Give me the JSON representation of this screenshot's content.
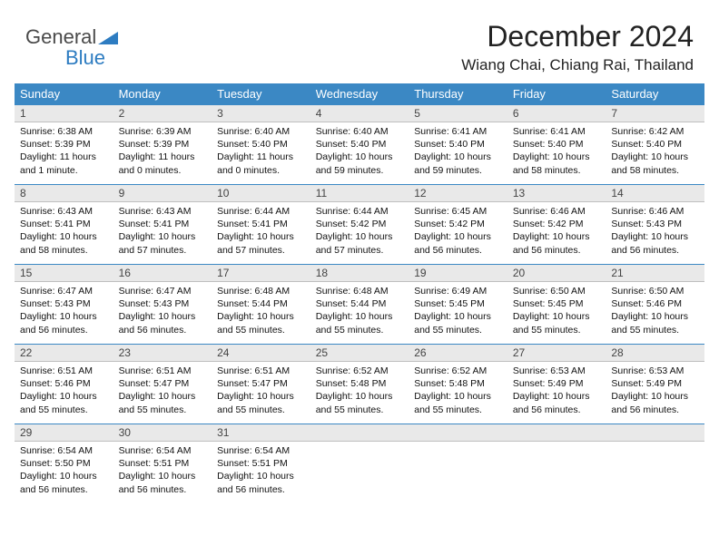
{
  "logo": {
    "line1": "General",
    "line2": "Blue",
    "triangle_color": "#2d7cc1"
  },
  "title": "December 2024",
  "subtitle": "Wiang Chai, Chiang Rai, Thailand",
  "colors": {
    "header_bg": "#3b88c4",
    "header_text": "#ffffff",
    "daybar_bg": "#e9e9e9",
    "daybar_border_top": "#3b88c4",
    "daybar_border_bottom": "#bfbfbf",
    "background": "#ffffff"
  },
  "weekdays": [
    "Sunday",
    "Monday",
    "Tuesday",
    "Wednesday",
    "Thursday",
    "Friday",
    "Saturday"
  ],
  "days": [
    {
      "n": "1",
      "sunrise": "6:38 AM",
      "sunset": "5:39 PM",
      "daylight": "11 hours and 1 minute."
    },
    {
      "n": "2",
      "sunrise": "6:39 AM",
      "sunset": "5:39 PM",
      "daylight": "11 hours and 0 minutes."
    },
    {
      "n": "3",
      "sunrise": "6:40 AM",
      "sunset": "5:40 PM",
      "daylight": "11 hours and 0 minutes."
    },
    {
      "n": "4",
      "sunrise": "6:40 AM",
      "sunset": "5:40 PM",
      "daylight": "10 hours and 59 minutes."
    },
    {
      "n": "5",
      "sunrise": "6:41 AM",
      "sunset": "5:40 PM",
      "daylight": "10 hours and 59 minutes."
    },
    {
      "n": "6",
      "sunrise": "6:41 AM",
      "sunset": "5:40 PM",
      "daylight": "10 hours and 58 minutes."
    },
    {
      "n": "7",
      "sunrise": "6:42 AM",
      "sunset": "5:40 PM",
      "daylight": "10 hours and 58 minutes."
    },
    {
      "n": "8",
      "sunrise": "6:43 AM",
      "sunset": "5:41 PM",
      "daylight": "10 hours and 58 minutes."
    },
    {
      "n": "9",
      "sunrise": "6:43 AM",
      "sunset": "5:41 PM",
      "daylight": "10 hours and 57 minutes."
    },
    {
      "n": "10",
      "sunrise": "6:44 AM",
      "sunset": "5:41 PM",
      "daylight": "10 hours and 57 minutes."
    },
    {
      "n": "11",
      "sunrise": "6:44 AM",
      "sunset": "5:42 PM",
      "daylight": "10 hours and 57 minutes."
    },
    {
      "n": "12",
      "sunrise": "6:45 AM",
      "sunset": "5:42 PM",
      "daylight": "10 hours and 56 minutes."
    },
    {
      "n": "13",
      "sunrise": "6:46 AM",
      "sunset": "5:42 PM",
      "daylight": "10 hours and 56 minutes."
    },
    {
      "n": "14",
      "sunrise": "6:46 AM",
      "sunset": "5:43 PM",
      "daylight": "10 hours and 56 minutes."
    },
    {
      "n": "15",
      "sunrise": "6:47 AM",
      "sunset": "5:43 PM",
      "daylight": "10 hours and 56 minutes."
    },
    {
      "n": "16",
      "sunrise": "6:47 AM",
      "sunset": "5:43 PM",
      "daylight": "10 hours and 56 minutes."
    },
    {
      "n": "17",
      "sunrise": "6:48 AM",
      "sunset": "5:44 PM",
      "daylight": "10 hours and 55 minutes."
    },
    {
      "n": "18",
      "sunrise": "6:48 AM",
      "sunset": "5:44 PM",
      "daylight": "10 hours and 55 minutes."
    },
    {
      "n": "19",
      "sunrise": "6:49 AM",
      "sunset": "5:45 PM",
      "daylight": "10 hours and 55 minutes."
    },
    {
      "n": "20",
      "sunrise": "6:50 AM",
      "sunset": "5:45 PM",
      "daylight": "10 hours and 55 minutes."
    },
    {
      "n": "21",
      "sunrise": "6:50 AM",
      "sunset": "5:46 PM",
      "daylight": "10 hours and 55 minutes."
    },
    {
      "n": "22",
      "sunrise": "6:51 AM",
      "sunset": "5:46 PM",
      "daylight": "10 hours and 55 minutes."
    },
    {
      "n": "23",
      "sunrise": "6:51 AM",
      "sunset": "5:47 PM",
      "daylight": "10 hours and 55 minutes."
    },
    {
      "n": "24",
      "sunrise": "6:51 AM",
      "sunset": "5:47 PM",
      "daylight": "10 hours and 55 minutes."
    },
    {
      "n": "25",
      "sunrise": "6:52 AM",
      "sunset": "5:48 PM",
      "daylight": "10 hours and 55 minutes."
    },
    {
      "n": "26",
      "sunrise": "6:52 AM",
      "sunset": "5:48 PM",
      "daylight": "10 hours and 55 minutes."
    },
    {
      "n": "27",
      "sunrise": "6:53 AM",
      "sunset": "5:49 PM",
      "daylight": "10 hours and 56 minutes."
    },
    {
      "n": "28",
      "sunrise": "6:53 AM",
      "sunset": "5:49 PM",
      "daylight": "10 hours and 56 minutes."
    },
    {
      "n": "29",
      "sunrise": "6:54 AM",
      "sunset": "5:50 PM",
      "daylight": "10 hours and 56 minutes."
    },
    {
      "n": "30",
      "sunrise": "6:54 AM",
      "sunset": "5:51 PM",
      "daylight": "10 hours and 56 minutes."
    },
    {
      "n": "31",
      "sunrise": "6:54 AM",
      "sunset": "5:51 PM",
      "daylight": "10 hours and 56 minutes."
    }
  ],
  "labels": {
    "sunrise": "Sunrise:",
    "sunset": "Sunset:",
    "daylight": "Daylight:"
  }
}
